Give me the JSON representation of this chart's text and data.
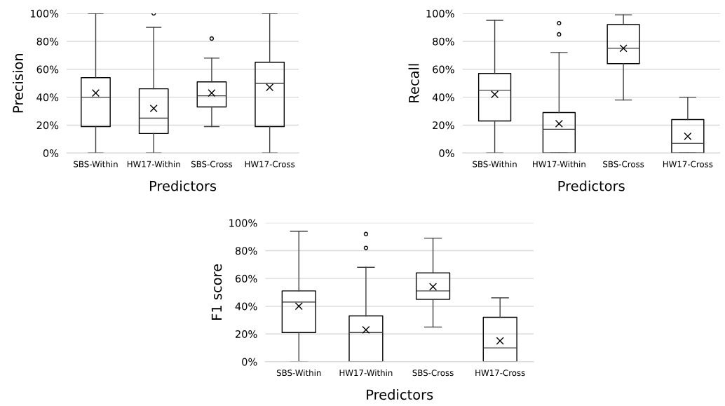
{
  "chart_data": [
    {
      "type": "box",
      "ylabel": "Precision",
      "xlabel": "Predictors",
      "categories": [
        "SBS-Within",
        "HW17-Within",
        "SBS-Cross",
        "HW17-Cross"
      ],
      "boxes": [
        {
          "low": 0,
          "q1": 19,
          "median": 40,
          "q3": 54,
          "high": 100,
          "mean": 43
        },
        {
          "low": 0,
          "q1": 14,
          "median": 25,
          "q3": 46,
          "high": 90,
          "mean": 32,
          "outliers": [
            100
          ]
        },
        {
          "low": 19,
          "q1": 33,
          "median": 41,
          "q3": 51,
          "high": 68,
          "mean": 43,
          "outliers": [
            82
          ]
        },
        {
          "low": 0,
          "q1": 19,
          "median": 50,
          "q3": 65,
          "high": 100,
          "mean": 47
        }
      ],
      "ylim": [
        0,
        100
      ],
      "yticks": [
        {
          "value": 0,
          "label": "0%"
        },
        {
          "value": 20,
          "label": "20%"
        },
        {
          "value": 40,
          "label": "40%"
        },
        {
          "value": 60,
          "label": "60%"
        },
        {
          "value": 80,
          "label": "80%"
        },
        {
          "value": 100,
          "label": "100%"
        }
      ],
      "grid": "y"
    },
    {
      "type": "box",
      "ylabel": "Recall",
      "xlabel": "Predictors",
      "categories": [
        "SBS-Within",
        "HW17-Within",
        "SBS-Cross",
        "HW17-Cross"
      ],
      "boxes": [
        {
          "low": 0,
          "q1": 23,
          "median": 45,
          "q3": 57,
          "high": 95,
          "mean": 42
        },
        {
          "low": 0,
          "q1": 0,
          "median": 17,
          "q3": 29,
          "high": 72,
          "mean": 21,
          "outliers": [
            85,
            93
          ]
        },
        {
          "low": 38,
          "q1": 64,
          "median": 75,
          "q3": 92,
          "high": 99,
          "mean": 75
        },
        {
          "low": 0,
          "q1": 0,
          "median": 7,
          "q3": 24,
          "high": 40,
          "mean": 12
        }
      ],
      "ylim": [
        0,
        100
      ],
      "yticks": [
        {
          "value": 0,
          "label": "0%"
        },
        {
          "value": 20,
          "label": "20%"
        },
        {
          "value": 40,
          "label": "40%"
        },
        {
          "value": 60,
          "label": "60%"
        },
        {
          "value": 80,
          "label": "80%"
        },
        {
          "value": 100,
          "label": "100%"
        }
      ],
      "grid": "y"
    },
    {
      "type": "box",
      "ylabel": "F1 score",
      "xlabel": "Predictors",
      "categories": [
        "SBS-Within",
        "HW17-Within",
        "SBS-Cross",
        "HW17-Cross"
      ],
      "boxes": [
        {
          "low": 0,
          "q1": 21,
          "median": 43,
          "q3": 51,
          "high": 94,
          "mean": 40
        },
        {
          "low": 0,
          "q1": 0,
          "median": 21,
          "q3": 33,
          "high": 68,
          "mean": 23,
          "outliers": [
            82,
            92
          ]
        },
        {
          "low": 25,
          "q1": 45,
          "median": 51,
          "q3": 64,
          "high": 89,
          "mean": 54
        },
        {
          "low": 0,
          "q1": 0,
          "median": 10,
          "q3": 32,
          "high": 46,
          "mean": 15
        }
      ],
      "ylim": [
        0,
        100
      ],
      "yticks": [
        {
          "value": 0,
          "label": "0%"
        },
        {
          "value": 20,
          "label": "20%"
        },
        {
          "value": 40,
          "label": "40%"
        },
        {
          "value": 60,
          "label": "60%"
        },
        {
          "value": 80,
          "label": "80%"
        },
        {
          "value": 100,
          "label": "100%"
        }
      ],
      "grid": "y"
    }
  ]
}
